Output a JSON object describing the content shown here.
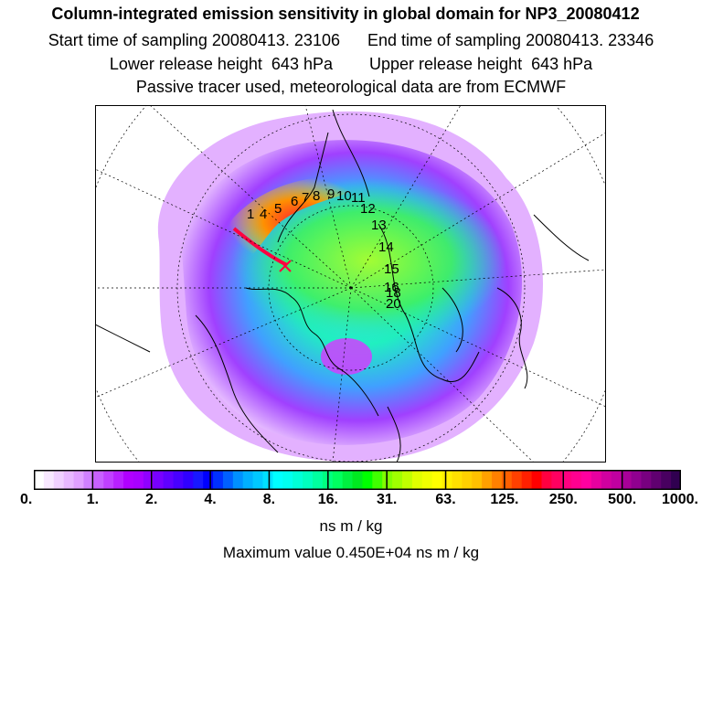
{
  "header": {
    "title": "Column-integrated emission sensitivity in global domain for NP3_20080412",
    "sampling_line": "Start time of sampling 20080413. 23106      End time of sampling 20080413. 23346",
    "release_line": "Lower release height  643 hPa        Upper release height  643 hPa",
    "tracer_line": "Passive tracer used, meteorological data are from ECMWF"
  },
  "map": {
    "projection": "polar stereographic (north)",
    "trajectory_labels": [
      "1",
      "4",
      "5",
      "6",
      "7",
      "8",
      "9",
      "10",
      "11",
      "12",
      "13",
      "14",
      "15",
      "16",
      "18",
      "20"
    ],
    "colors": {
      "background": "#ffffff",
      "low": "#d070ff",
      "mid": "#00e0ff",
      "high": "#ffe000",
      "peak": "#ff0040"
    }
  },
  "colorbar": {
    "tick_labels": [
      "0.",
      "1.",
      "2.",
      "4.",
      "8.",
      "16.",
      "31.",
      "63.",
      "125.",
      "250.",
      "500.",
      "1000."
    ],
    "colors": [
      "#ffffff",
      "#f8e8ff",
      "#f0d0ff",
      "#e8b8ff",
      "#e0a0ff",
      "#d080ff",
      "#c860ff",
      "#c040ff",
      "#b820ff",
      "#b000ff",
      "#a800ff",
      "#9000ff",
      "#7800ff",
      "#6000ff",
      "#4800ff",
      "#3000ff",
      "#1818ff",
      "#0000ff",
      "#0030ff",
      "#0060ff",
      "#0090ff",
      "#00b0ff",
      "#00c8ff",
      "#00e0ff",
      "#00ffff",
      "#00fff0",
      "#00ffd8",
      "#00ffc0",
      "#00ffa0",
      "#00ff80",
      "#00ff60",
      "#00f040",
      "#00e820",
      "#00ff00",
      "#40ff00",
      "#80ff00",
      "#a0ff00",
      "#c0ff00",
      "#e0ff00",
      "#f0ff00",
      "#ffff00",
      "#fff000",
      "#ffe000",
      "#ffd000",
      "#ffc000",
      "#ffa000",
      "#ff8000",
      "#ff6000",
      "#ff4000",
      "#ff2000",
      "#ff0000",
      "#ff0040",
      "#ff0060",
      "#ff0080",
      "#ff0090",
      "#ff00a0",
      "#e800a0",
      "#d000a0",
      "#c000a0",
      "#a80098",
      "#900090",
      "#780080",
      "#600070",
      "#480060",
      "#300050"
    ]
  },
  "units": "ns m / kg",
  "maximum_line": "Maximum value  0.450E+04 ns m / kg"
}
